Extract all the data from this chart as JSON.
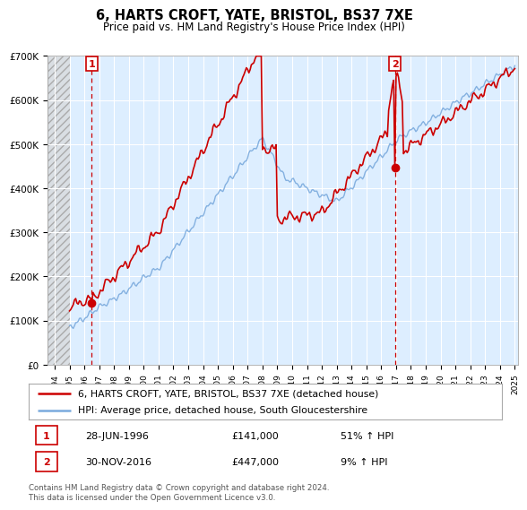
{
  "title": "6, HARTS CROFT, YATE, BRISTOL, BS37 7XE",
  "subtitle": "Price paid vs. HM Land Registry's House Price Index (HPI)",
  "legend_line1": "6, HARTS CROFT, YATE, BRISTOL, BS37 7XE (detached house)",
  "legend_line2": "HPI: Average price, detached house, South Gloucestershire",
  "footer": "Contains HM Land Registry data © Crown copyright and database right 2024.\nThis data is licensed under the Open Government Licence v3.0.",
  "annotation1_date": "28-JUN-1996",
  "annotation1_price": "£141,000",
  "annotation1_hpi": "51% ↑ HPI",
  "annotation2_date": "30-NOV-2016",
  "annotation2_price": "£447,000",
  "annotation2_hpi": "9% ↑ HPI",
  "sale1_x": 1996.49,
  "sale1_y": 141000,
  "sale2_x": 2016.92,
  "sale2_y": 447000,
  "hpi_color": "#7aaadd",
  "price_color": "#cc0000",
  "annotation_box_color": "#cc0000",
  "plot_bg_color": "#ddeeff",
  "ylim": [
    0,
    700000
  ],
  "xlim_start": 1993.5,
  "xlim_end": 2025.2,
  "hatch_end": 1995.0
}
